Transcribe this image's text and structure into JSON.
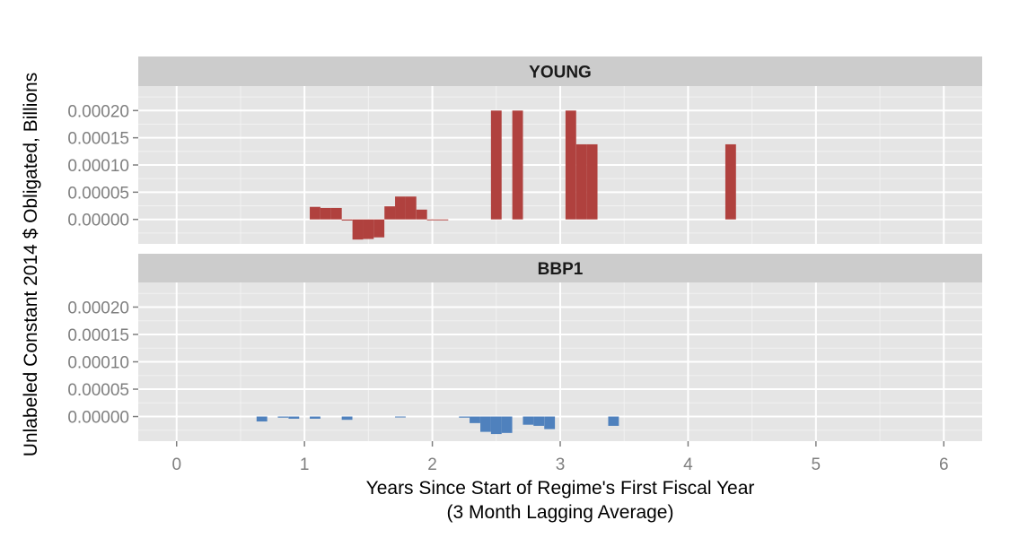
{
  "chart_data": {
    "type": "bar",
    "xlabel_line1": "Years Since Start of Regime's First Fiscal Year",
    "xlabel_line2": "(3 Month Lagging Average)",
    "ylabel": "Unlabeled Constant 2014 $ Obligated, Billions",
    "x_ticks": [
      "0",
      "1",
      "2",
      "3",
      "4",
      "5",
      "6"
    ],
    "x_tick_values": [
      0,
      1,
      2,
      3,
      4,
      5,
      6
    ],
    "y_ticks": [
      "0.00000",
      "0.00005",
      "0.00010",
      "0.00015",
      "0.00020"
    ],
    "y_tick_values": [
      0,
      5e-05,
      0.0001,
      0.00015,
      0.0002
    ],
    "xlim": [
      -0.3,
      6.3
    ],
    "ylim": [
      -4.5e-05,
      0.000245
    ],
    "grid": true,
    "bar_width": 0.0833,
    "panels": [
      {
        "name": "YOUNG",
        "color": "#B0413E",
        "x": [
          1.083,
          1.167,
          1.25,
          1.333,
          1.417,
          1.5,
          1.583,
          1.667,
          1.75,
          1.833,
          1.917,
          2.0,
          2.083,
          2.5,
          2.667,
          3.083,
          3.167,
          3.25,
          4.333
        ],
        "values": [
          2.3e-05,
          2.1e-05,
          2.1e-05,
          -2e-06,
          -3.7e-05,
          -3.6e-05,
          -3.3e-05,
          2.4e-05,
          4.2e-05,
          4.2e-05,
          1.8e-05,
          -1e-06,
          -1e-06,
          0.0002,
          0.0002,
          0.0002,
          0.000138,
          0.000138,
          0.000138
        ]
      },
      {
        "name": "BBP1",
        "color": "#4F81BD",
        "x": [
          0.667,
          0.833,
          0.917,
          1.083,
          1.333,
          1.75,
          2.25,
          2.333,
          2.417,
          2.5,
          2.583,
          2.75,
          2.833,
          2.917,
          3.417
        ],
        "values": [
          -9e-06,
          -2e-06,
          -4e-06,
          -4e-06,
          -6e-06,
          -1e-06,
          -2e-06,
          -1.2e-05,
          -2.8e-05,
          -3.2e-05,
          -3e-05,
          -1.5e-05,
          -1.7e-05,
          -2.3e-05,
          -1.7e-05
        ]
      }
    ]
  }
}
